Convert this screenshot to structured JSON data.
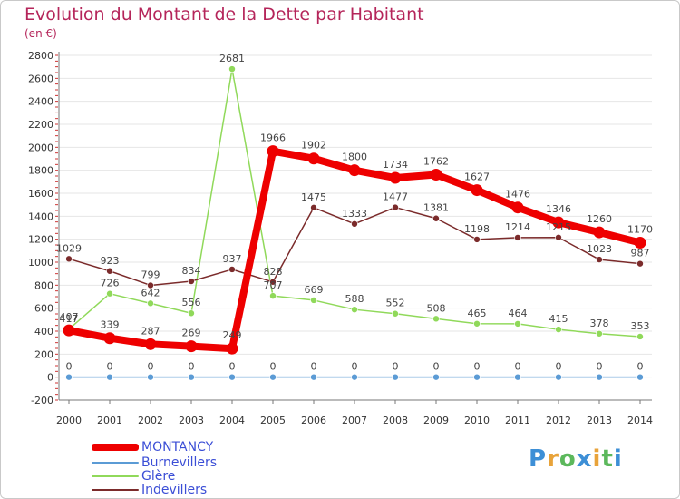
{
  "title": "Evolution du Montant de la Dette par Habitant",
  "subtitle": "(en €)",
  "logo": {
    "text": "Proxiti",
    "colors": [
      "#3d8fd6",
      "#e8a33a",
      "#5cb85c",
      "#3d8fd6",
      "#e8a33a",
      "#5cb85c",
      "#3d8fd6"
    ]
  },
  "colors": {
    "grid": "#e6e6e6",
    "axis": "#777777",
    "tick_text": "#333333",
    "label_text": "#444444"
  },
  "chart_data": {
    "type": "line",
    "x": [
      2000,
      2001,
      2002,
      2003,
      2004,
      2005,
      2006,
      2007,
      2008,
      2009,
      2010,
      2011,
      2012,
      2013,
      2014
    ],
    "ylim": [
      -200,
      2800
    ],
    "yticks": [
      -200,
      0,
      200,
      400,
      600,
      800,
      1000,
      1200,
      1400,
      1600,
      1800,
      2000,
      2200,
      2400,
      2600,
      2800
    ],
    "grid": "horizontal",
    "legend": "bottom-left",
    "series": [
      {
        "name": "MONTANCY",
        "color": "#ee0000",
        "values": [
          407,
          339,
          287,
          269,
          249,
          1966,
          1902,
          1800,
          1734,
          1762,
          1627,
          1476,
          1346,
          1260,
          1170
        ]
      },
      {
        "name": "Burnevillers",
        "color": "#5b9bd5",
        "values": [
          0,
          0,
          0,
          0,
          0,
          0,
          0,
          0,
          0,
          0,
          0,
          0,
          0,
          0,
          0
        ]
      },
      {
        "name": "Glère",
        "color": "#90d95a",
        "values": [
          417,
          726,
          642,
          556,
          2681,
          707,
          669,
          588,
          552,
          508,
          465,
          464,
          415,
          378,
          353
        ]
      },
      {
        "name": "Indevillers",
        "color": "#7b2b2b",
        "values": [
          1029,
          923,
          799,
          834,
          937,
          828,
          1475,
          1333,
          1477,
          1381,
          1198,
          1214,
          1215,
          1023,
          987
        ]
      }
    ]
  }
}
